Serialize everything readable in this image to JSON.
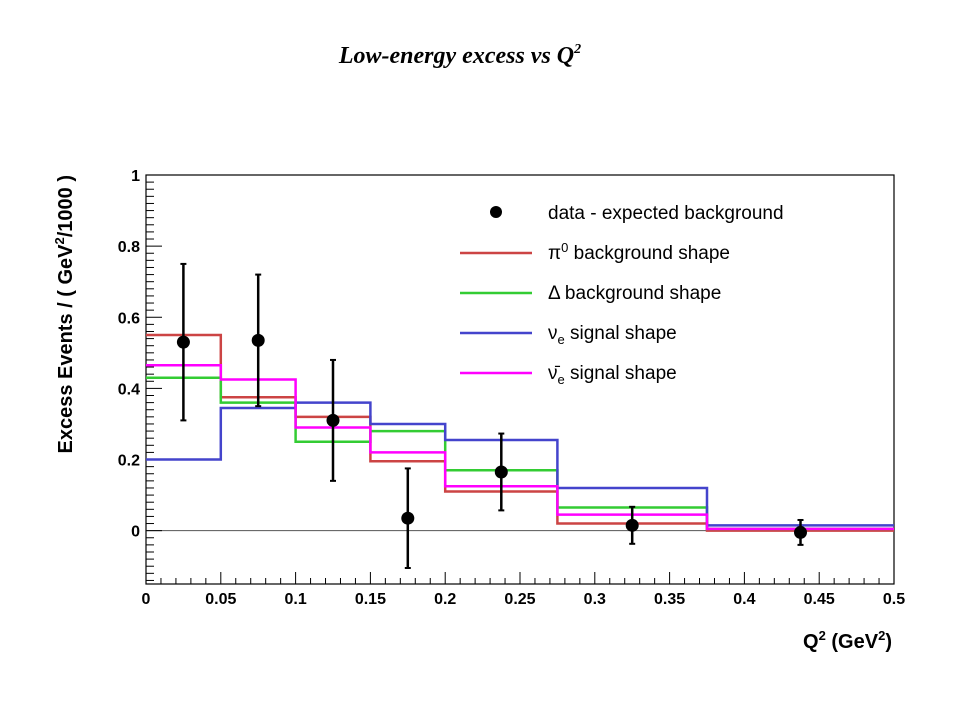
{
  "page_title": {
    "main": "Low-energy excess vs Q",
    "superscript": "2"
  },
  "chart_data": {
    "type": "line",
    "xlabel": {
      "main": "Q",
      "sup1": "2",
      "mid": " (GeV",
      "sup2": "2",
      "end": ")"
    },
    "ylabel": {
      "main": "Excess Events / ( GeV",
      "sup": "2",
      "end": "/1000 )"
    },
    "xlim": [
      0,
      0.5
    ],
    "ylim": [
      -0.15,
      1.0
    ],
    "x_ticks": [
      "0",
      "0.05",
      "0.1",
      "0.15",
      "0.2",
      "0.25",
      "0.3",
      "0.35",
      "0.4",
      "0.45",
      "0.5"
    ],
    "y_ticks": [
      "0",
      "0.2",
      "0.4",
      "0.6",
      "0.8",
      "1"
    ],
    "bin_edges": [
      0,
      0.05,
      0.1,
      0.15,
      0.2,
      0.275,
      0.375,
      0.5
    ],
    "data_points": {
      "name": "data - expected background",
      "color": "#000000",
      "x": [
        0.025,
        0.075,
        0.125,
        0.175,
        0.2375,
        0.325,
        0.4375
      ],
      "y": [
        0.53,
        0.535,
        0.31,
        0.035,
        0.165,
        0.015,
        -0.005
      ],
      "err": [
        0.22,
        0.185,
        0.17,
        0.14,
        0.108,
        0.052,
        0.035
      ]
    },
    "series": [
      {
        "name_prefix": "π",
        "name_sup": "0",
        "name_suffix": " background shape",
        "color": "#cc4444",
        "values": [
          0.55,
          0.375,
          0.32,
          0.195,
          0.11,
          0.02,
          0.0
        ]
      },
      {
        "name_prefix": "Δ",
        "name_suffix": " background shape",
        "color": "#33cc33",
        "values": [
          0.43,
          0.36,
          0.25,
          0.28,
          0.17,
          0.065,
          0.005
        ]
      },
      {
        "name_prefix": "ν",
        "name_sub": "e",
        "name_suffix": " signal shape",
        "color": "#4444cc",
        "values": [
          0.2,
          0.345,
          0.36,
          0.3,
          0.255,
          0.12,
          0.015
        ]
      },
      {
        "name_prefix": "ν̄",
        "name_sub": "e",
        "name_suffix": " signal shape",
        "color": "#ff00ff",
        "values": [
          0.465,
          0.425,
          0.29,
          0.22,
          0.125,
          0.045,
          0.005
        ]
      }
    ],
    "grid": false,
    "legend_position": "top-right"
  }
}
